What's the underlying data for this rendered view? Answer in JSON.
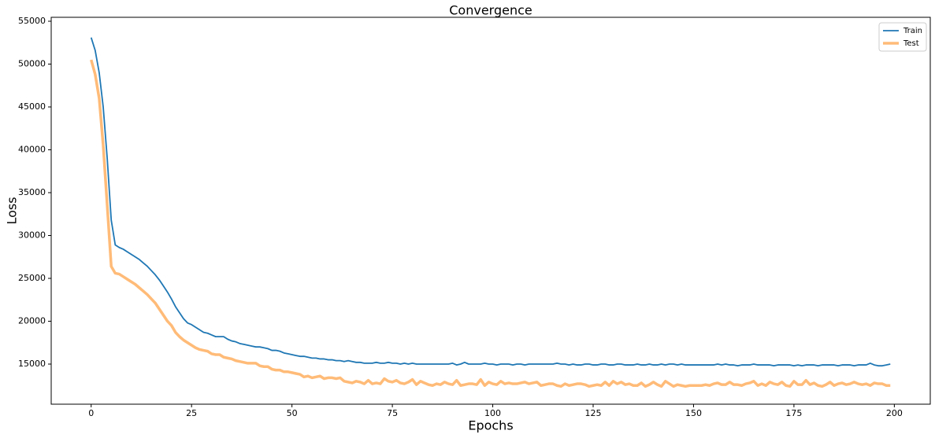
{
  "chart_data": {
    "type": "line",
    "title": "Convergence",
    "xlabel": "Epochs",
    "ylabel": "Loss",
    "x": [
      0,
      1,
      2,
      3,
      4,
      5,
      6,
      7,
      8,
      9,
      10,
      11,
      12,
      13,
      14,
      15,
      16,
      17,
      18,
      19,
      20,
      21,
      22,
      23,
      24,
      25,
      26,
      27,
      28,
      29,
      30,
      31,
      32,
      33,
      34,
      35,
      36,
      37,
      38,
      39,
      40,
      41,
      42,
      43,
      44,
      45,
      46,
      47,
      48,
      49,
      50,
      51,
      52,
      53,
      54,
      55,
      56,
      57,
      58,
      59,
      60,
      61,
      62,
      63,
      64,
      65,
      66,
      67,
      68,
      69,
      70,
      71,
      72,
      73,
      74,
      75,
      76,
      77,
      78,
      79,
      80,
      81,
      82,
      83,
      84,
      85,
      86,
      87,
      88,
      89,
      90,
      91,
      92,
      93,
      94,
      95,
      96,
      97,
      98,
      99,
      100,
      101,
      102,
      103,
      104,
      105,
      106,
      107,
      108,
      109,
      110,
      111,
      112,
      113,
      114,
      115,
      116,
      117,
      118,
      119,
      120,
      121,
      122,
      123,
      124,
      125,
      126,
      127,
      128,
      129,
      130,
      131,
      132,
      133,
      134,
      135,
      136,
      137,
      138,
      139,
      140,
      141,
      142,
      143,
      144,
      145,
      146,
      147,
      148,
      149,
      150,
      151,
      152,
      153,
      154,
      155,
      156,
      157,
      158,
      159,
      160,
      161,
      162,
      163,
      164,
      165,
      166,
      167,
      168,
      169,
      170,
      171,
      172,
      173,
      174,
      175,
      176,
      177,
      178,
      179,
      180,
      181,
      182,
      183,
      184,
      185,
      186,
      187,
      188,
      189,
      190,
      191,
      192,
      193,
      194,
      195,
      196,
      197,
      198,
      199
    ],
    "series": [
      {
        "name": "Train",
        "color": "#1f77b4",
        "linewidth": 1.8,
        "values": [
          53100,
          51600,
          49000,
          45000,
          39000,
          31800,
          28900,
          28600,
          28400,
          28100,
          27800,
          27500,
          27200,
          26800,
          26400,
          25900,
          25400,
          24800,
          24100,
          23400,
          22600,
          21700,
          21000,
          20300,
          19800,
          19600,
          19300,
          19000,
          18700,
          18600,
          18400,
          18200,
          18200,
          18200,
          17900,
          17700,
          17600,
          17400,
          17300,
          17200,
          17100,
          17000,
          17000,
          16900,
          16800,
          16600,
          16600,
          16500,
          16300,
          16200,
          16100,
          16000,
          15900,
          15900,
          15800,
          15700,
          15700,
          15600,
          15600,
          15500,
          15500,
          15400,
          15400,
          15300,
          15400,
          15300,
          15200,
          15200,
          15100,
          15100,
          15100,
          15200,
          15100,
          15100,
          15200,
          15100,
          15100,
          15000,
          15100,
          15000,
          15100,
          15000,
          15000,
          15000,
          15000,
          15000,
          15000,
          15000,
          15000,
          15000,
          15100,
          14900,
          15000,
          15200,
          15000,
          15000,
          15000,
          15000,
          15100,
          15000,
          15000,
          14900,
          15000,
          15000,
          15000,
          14900,
          15000,
          15000,
          14900,
          15000,
          15000,
          15000,
          15000,
          15000,
          15000,
          15000,
          15100,
          15000,
          15000,
          14900,
          15000,
          14900,
          14900,
          15000,
          15000,
          14900,
          14900,
          15000,
          15000,
          14900,
          14900,
          15000,
          15000,
          14900,
          14900,
          14900,
          15000,
          14900,
          14900,
          15000,
          14900,
          14900,
          15000,
          14900,
          15000,
          15000,
          14900,
          15000,
          14900,
          14900,
          14900,
          14900,
          14900,
          14900,
          14900,
          14900,
          15000,
          14900,
          15000,
          14900,
          14900,
          14800,
          14900,
          14900,
          14900,
          15000,
          14900,
          14900,
          14900,
          14900,
          14800,
          14900,
          14900,
          14900,
          14900,
          14800,
          14900,
          14800,
          14900,
          14900,
          14900,
          14800,
          14900,
          14900,
          14900,
          14900,
          14800,
          14900,
          14900,
          14900,
          14800,
          14900,
          14900,
          14900,
          15100,
          14900,
          14800,
          14800,
          14900,
          15000
        ]
      },
      {
        "name": "Test",
        "color": "#ffbb78",
        "linewidth": 3.5,
        "values": [
          50500,
          48800,
          46000,
          40500,
          33500,
          26400,
          25600,
          25500,
          25200,
          24900,
          24600,
          24300,
          23900,
          23500,
          23100,
          22600,
          22100,
          21400,
          20700,
          20000,
          19500,
          18700,
          18200,
          17800,
          17500,
          17200,
          16900,
          16700,
          16600,
          16500,
          16200,
          16100,
          16100,
          15800,
          15700,
          15600,
          15400,
          15300,
          15200,
          15100,
          15100,
          15100,
          14800,
          14700,
          14700,
          14400,
          14300,
          14300,
          14100,
          14100,
          14000,
          13900,
          13800,
          13500,
          13600,
          13400,
          13500,
          13600,
          13300,
          13400,
          13400,
          13300,
          13400,
          13000,
          12900,
          12800,
          13000,
          12900,
          12700,
          13100,
          12700,
          12800,
          12700,
          13300,
          13000,
          12900,
          13100,
          12800,
          12700,
          12900,
          13200,
          12600,
          13000,
          12800,
          12600,
          12500,
          12700,
          12600,
          12900,
          12700,
          12600,
          13100,
          12500,
          12600,
          12700,
          12700,
          12600,
          13200,
          12500,
          12900,
          12700,
          12600,
          13000,
          12700,
          12800,
          12700,
          12700,
          12800,
          12900,
          12700,
          12800,
          12900,
          12500,
          12600,
          12700,
          12700,
          12500,
          12400,
          12700,
          12500,
          12600,
          12700,
          12700,
          12600,
          12400,
          12500,
          12600,
          12500,
          12900,
          12500,
          13000,
          12700,
          12900,
          12600,
          12700,
          12500,
          12500,
          12800,
          12400,
          12600,
          12900,
          12600,
          12400,
          13000,
          12700,
          12400,
          12600,
          12500,
          12400,
          12500,
          12500,
          12500,
          12500,
          12600,
          12500,
          12700,
          12800,
          12600,
          12600,
          12900,
          12600,
          12600,
          12500,
          12700,
          12800,
          13000,
          12500,
          12700,
          12500,
          12900,
          12700,
          12600,
          12900,
          12500,
          12400,
          13000,
          12600,
          12600,
          13100,
          12600,
          12800,
          12500,
          12400,
          12600,
          12900,
          12500,
          12700,
          12800,
          12600,
          12700,
          12900,
          12700,
          12600,
          12700,
          12500,
          12800,
          12700,
          12700,
          12500,
          12500
        ]
      }
    ],
    "xlim": [
      -9.95,
      208.95
    ],
    "ylim": [
      10320,
      55460
    ],
    "xticks": [
      0,
      25,
      50,
      75,
      100,
      125,
      150,
      175,
      200
    ],
    "yticks": [
      15000,
      20000,
      25000,
      30000,
      35000,
      40000,
      45000,
      50000,
      55000
    ],
    "legend": "upper right"
  }
}
